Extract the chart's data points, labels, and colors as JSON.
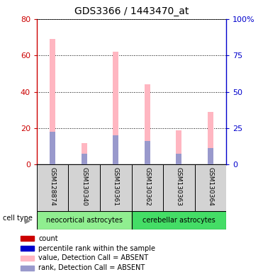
{
  "title": "GDS3366 / 1443470_at",
  "samples": [
    "GSM128874",
    "GSM130340",
    "GSM130361",
    "GSM130362",
    "GSM130363",
    "GSM130364"
  ],
  "pink_bars": [
    69,
    12,
    62,
    44,
    19,
    29
  ],
  "blue_bars": [
    18,
    6,
    16,
    13,
    6,
    9
  ],
  "ylim_left": [
    0,
    80
  ],
  "ylim_right": [
    0,
    100
  ],
  "yticks_left": [
    0,
    20,
    40,
    60,
    80
  ],
  "yticks_right": [
    0,
    25,
    50,
    75,
    100
  ],
  "left_axis_color": "#CC0000",
  "right_axis_color": "#0000CC",
  "pink_color": "#FFB6C1",
  "blue_color": "#9999CC",
  "red_marker_color": "#CC0000",
  "blue_marker_color": "#0000CC",
  "legend_colors": [
    "#CC0000",
    "#0000CC",
    "#FFB6C1",
    "#9999CC"
  ],
  "legend_labels": [
    "count",
    "percentile rank within the sample",
    "value, Detection Call = ABSENT",
    "rank, Detection Call = ABSENT"
  ],
  "bar_bg_color": "#D3D3D3",
  "neo_color": "#90EE90",
  "cer_color": "#44DD66",
  "cell_type_label": "cell type"
}
